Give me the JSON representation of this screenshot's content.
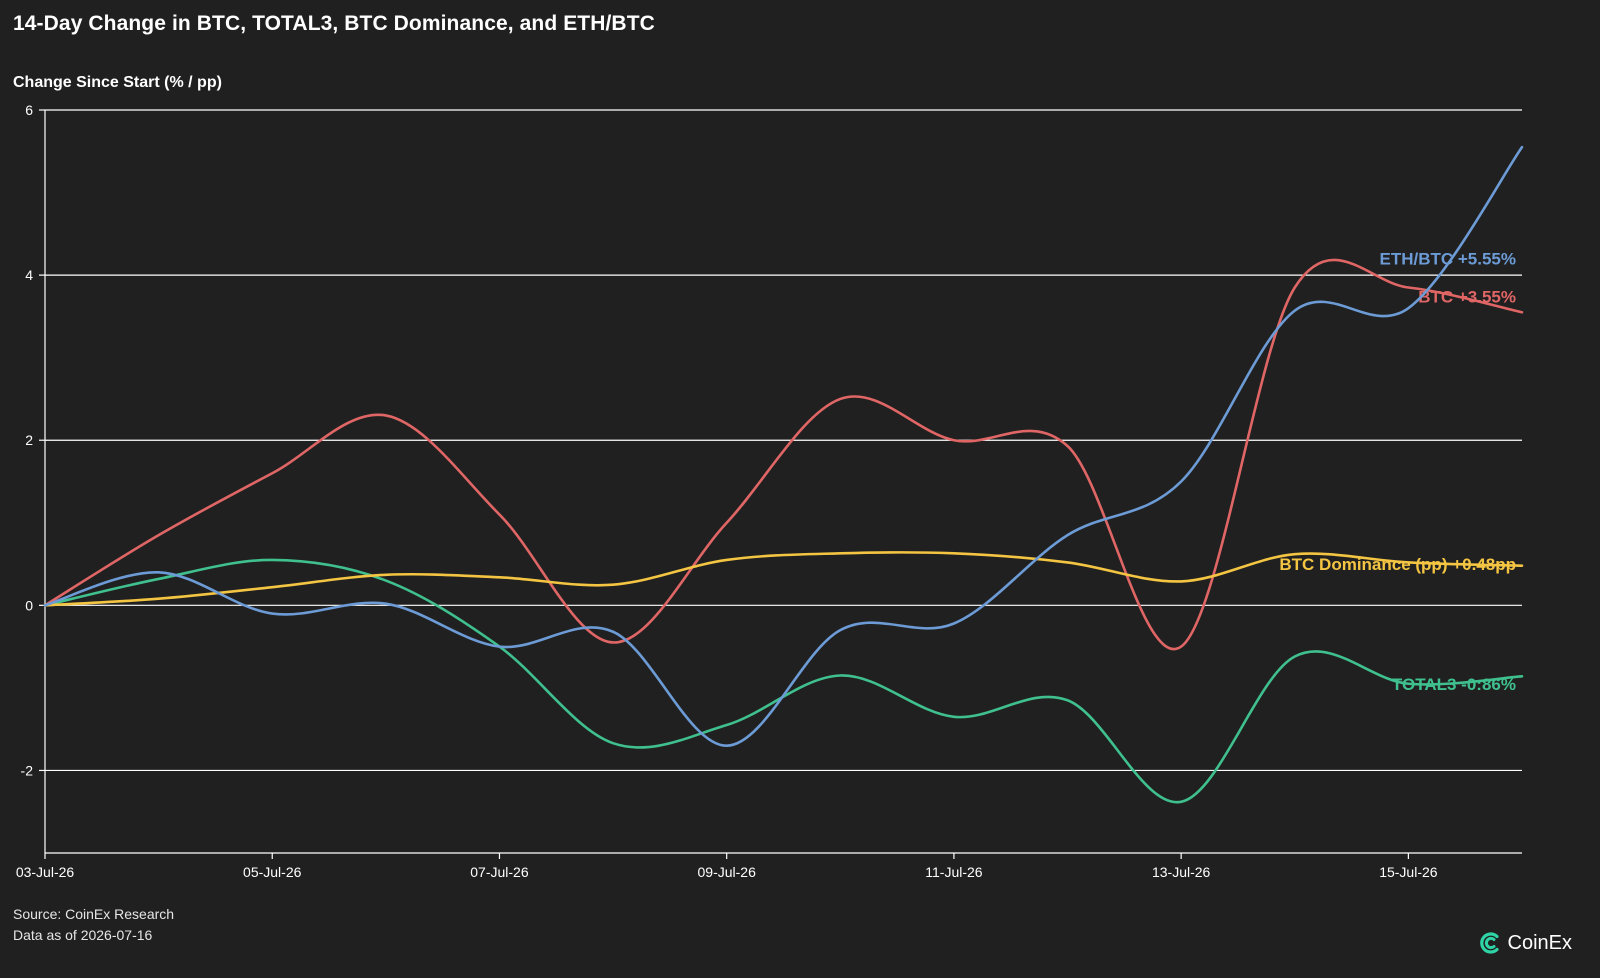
{
  "title": "14-Day Change in BTC, TOTAL3, BTC Dominance, and ETH/BTC",
  "footer": {
    "source": "Source: CoinEx Research",
    "data_as_of": "Data as of 2026-07-16"
  },
  "logo": {
    "text": "CoinEx",
    "icon": "coinex-logo-icon",
    "color": "#2ed3a6"
  },
  "chart_data": {
    "type": "line",
    "title": "14-Day Change in BTC, TOTAL3, BTC Dominance, and ETH/BTC",
    "ylabel": "Change Since Start (% / pp)",
    "xlabel": "",
    "ylim": [
      -3,
      6
    ],
    "yticks": [
      -2,
      0,
      2,
      4,
      6
    ],
    "grid": "horizontal",
    "background": "#202020",
    "x": [
      "03-Jul-26",
      "04-Jul-26",
      "05-Jul-26",
      "06-Jul-26",
      "07-Jul-26",
      "08-Jul-26",
      "09-Jul-26",
      "10-Jul-26",
      "11-Jul-26",
      "12-Jul-26",
      "13-Jul-26",
      "14-Jul-26",
      "15-Jul-26",
      "16-Jul-26"
    ],
    "xtick_labels": [
      "03-Jul-26",
      "05-Jul-26",
      "07-Jul-26",
      "09-Jul-26",
      "11-Jul-26",
      "13-Jul-26",
      "15-Jul-26"
    ],
    "series": [
      {
        "name": "BTC",
        "color": "#e06666",
        "values": [
          0,
          0.85,
          1.6,
          2.3,
          1.1,
          -0.45,
          1.0,
          2.5,
          2.0,
          1.93,
          -0.5,
          3.85,
          3.85,
          3.55
        ],
        "end_label": "BTC +3.55%"
      },
      {
        "name": "TOTAL3",
        "color": "#3fc08e",
        "values": [
          0,
          0.32,
          0.55,
          0.3,
          -0.5,
          -1.67,
          -1.45,
          -0.85,
          -1.35,
          -1.15,
          -2.38,
          -0.62,
          -0.95,
          -0.86
        ],
        "end_label": "TOTAL3 -0:86%"
      },
      {
        "name": "BTC Dominance (pp)",
        "color": "#f4c542",
        "values": [
          0,
          0.08,
          0.22,
          0.37,
          0.34,
          0.25,
          0.55,
          0.63,
          0.63,
          0.52,
          0.29,
          0.62,
          0.52,
          0.48
        ],
        "end_label": "BTC Dominance (pp) +0.48pp"
      },
      {
        "name": "ETH/BTC",
        "color": "#6c9bd6",
        "values": [
          0,
          0.4,
          -0.1,
          0.02,
          -0.5,
          -0.32,
          -1.7,
          -0.3,
          -0.22,
          0.85,
          1.5,
          3.57,
          3.6,
          5.55
        ],
        "end_label": "ETH/BTC +5.55%"
      }
    ]
  }
}
